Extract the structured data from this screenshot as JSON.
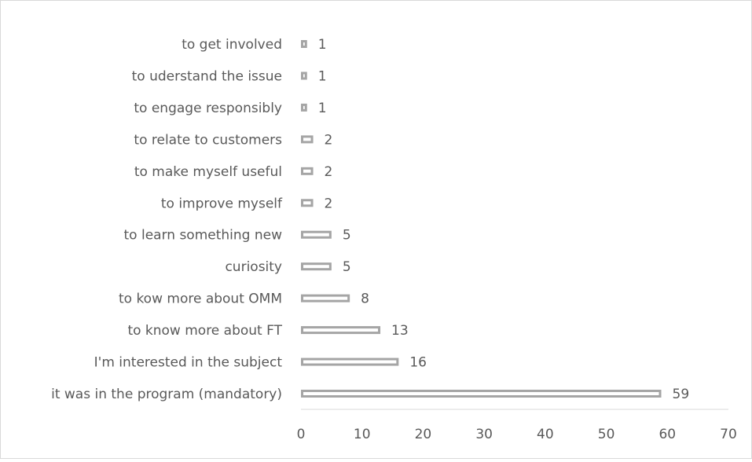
{
  "chart_data": {
    "type": "bar",
    "orientation": "horizontal",
    "categories": [
      "it was in the program (mandatory)",
      "I'm interested in the subject",
      "to know more about FT",
      "to kow more about OMM",
      "curiosity",
      "to learn something new",
      "to improve myself",
      "to make myself useful",
      "to relate to customers",
      "to engage responsibly",
      "to uderstand the issue",
      "to get involved"
    ],
    "values": [
      59,
      16,
      13,
      8,
      5,
      5,
      2,
      2,
      2,
      1,
      1,
      1
    ],
    "xlim": [
      0,
      70
    ],
    "x_ticks": [
      0,
      10,
      20,
      30,
      40,
      50,
      60,
      70
    ],
    "grid": false,
    "legend": "none",
    "data_labels": true,
    "title": "",
    "xlabel": "",
    "ylabel": "",
    "colors": {
      "bar_stroke": "#a5a5a5",
      "bar_fill": "#ffffff",
      "text": "#595959",
      "axis": "#d9d9d9"
    }
  }
}
